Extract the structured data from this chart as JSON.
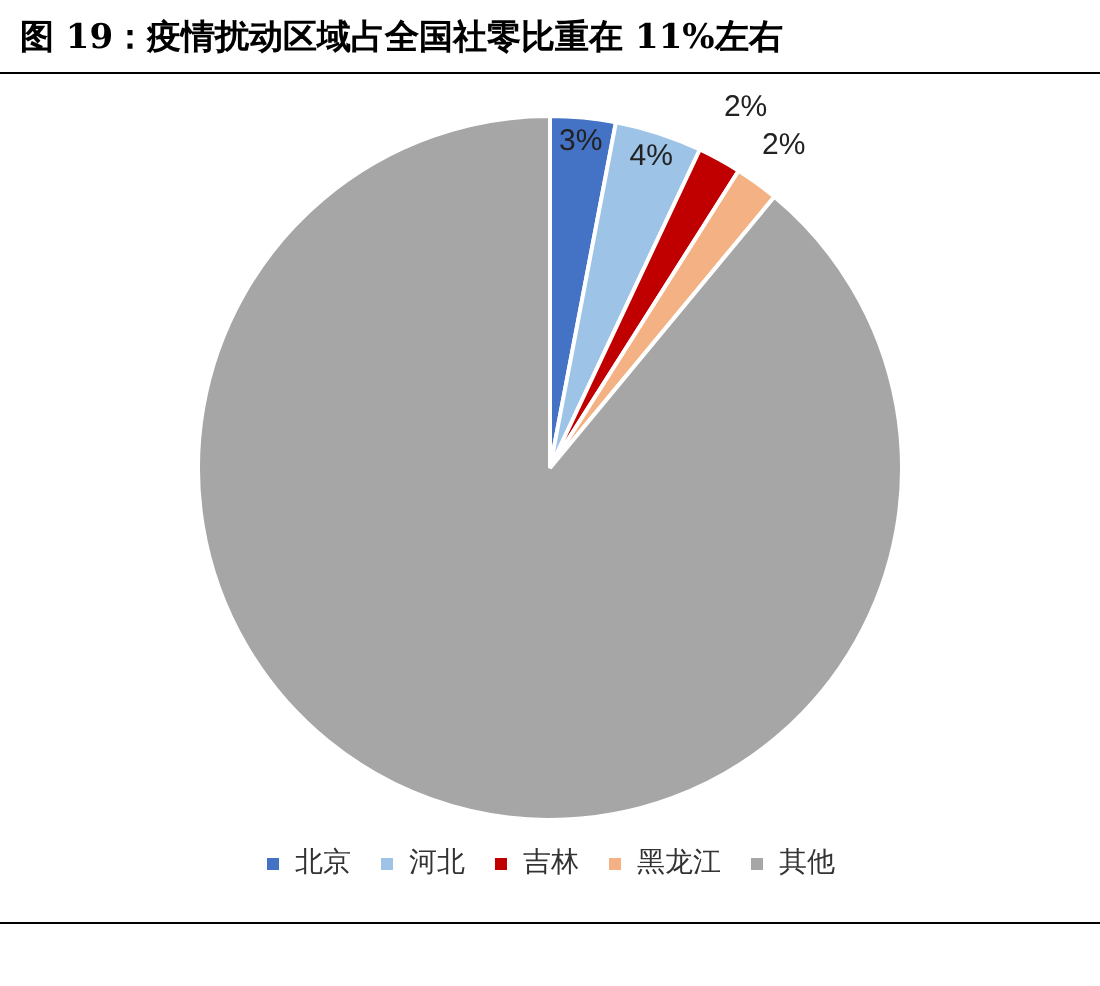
{
  "chart_data": {
    "type": "pie",
    "title": "图 19：疫情扰动区域占全国社零比重在 11%左右",
    "categories": [
      "北京",
      "河北",
      "吉林",
      "黑龙江",
      "其他"
    ],
    "values": [
      3,
      4,
      2,
      2,
      89
    ],
    "colors": [
      "#4472c4",
      "#9dc3e6",
      "#c00000",
      "#f4b183",
      "#a6a6a6"
    ],
    "value_labels": [
      "3%",
      "4%",
      "2%",
      "2%",
      null
    ],
    "legend": "bottom"
  }
}
